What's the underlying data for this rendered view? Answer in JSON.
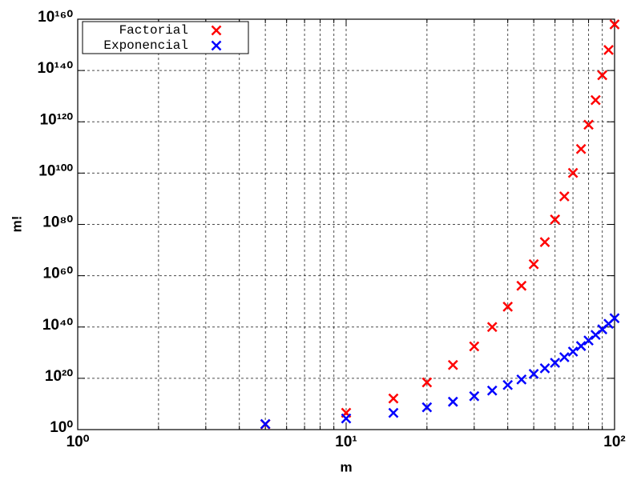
{
  "chart_data": {
    "type": "scatter",
    "xlabel": "m",
    "ylabel": "m!",
    "x": [
      5,
      10,
      15,
      20,
      25,
      30,
      35,
      40,
      45,
      50,
      55,
      60,
      65,
      70,
      75,
      80,
      85,
      90,
      95,
      100
    ],
    "series": [
      {
        "name": "Factorial",
        "color": "#ff0000",
        "values": [
          120,
          3628800,
          1307700000000.0,
          2.4329e+18,
          1.5511e+25,
          2.6525e+32,
          1.0333e+40,
          8.1592e+47,
          1.1962e+56,
          3.0414e+64,
          1.2696e+73,
          8.321e+81,
          8.2477e+90,
          1.1979e+100,
          2.4809e+109,
          7.1569e+118,
          2.8171e+128,
          1.4857e+138,
          1.033e+148,
          9.3326e+157
        ]
      },
      {
        "name": "Exponencial",
        "color": "#0000ff",
        "values": [
          148.4,
          22026,
          3269000.0,
          485200000.0,
          72000000000.0,
          10690000000000.0,
          1586000000000000.0,
          2.354e+17,
          3.493e+19,
          5.185e+21,
          7.69e+23,
          1.142e+26,
          1.694e+28,
          2.515e+30,
          3.733e+32,
          5.541e+34,
          8.223e+36,
          1.22e+39,
          1.811e+41,
          2.688e+43
        ]
      }
    ],
    "xscale": "log",
    "yscale": "log",
    "xlim": [
      1,
      100
    ],
    "ylim": [
      1,
      1e+160
    ],
    "xticks": [
      {
        "value": 1,
        "label": "10⁰"
      },
      {
        "value": 10,
        "label": "10¹"
      },
      {
        "value": 100,
        "label": "10²"
      }
    ],
    "xminorticks": [
      2,
      3,
      4,
      5,
      6,
      7,
      8,
      9,
      20,
      30,
      40,
      50,
      60,
      70,
      80,
      90
    ],
    "yticks": [
      {
        "value": 1,
        "label": "10⁰"
      },
      {
        "value": 1e+20,
        "label": "10²⁰"
      },
      {
        "value": 1e+40,
        "label": "10⁴⁰"
      },
      {
        "value": 1e+60,
        "label": "10⁶⁰"
      },
      {
        "value": 1e+80,
        "label": "10⁸⁰"
      },
      {
        "value": 1e+100,
        "label": "10¹⁰⁰"
      },
      {
        "value": 1e+120,
        "label": "10¹²⁰"
      },
      {
        "value": 1e+140,
        "label": "10¹⁴⁰"
      },
      {
        "value": 1e+160,
        "label": "10¹⁶⁰"
      }
    ],
    "grid": true,
    "legend": "upper left"
  }
}
